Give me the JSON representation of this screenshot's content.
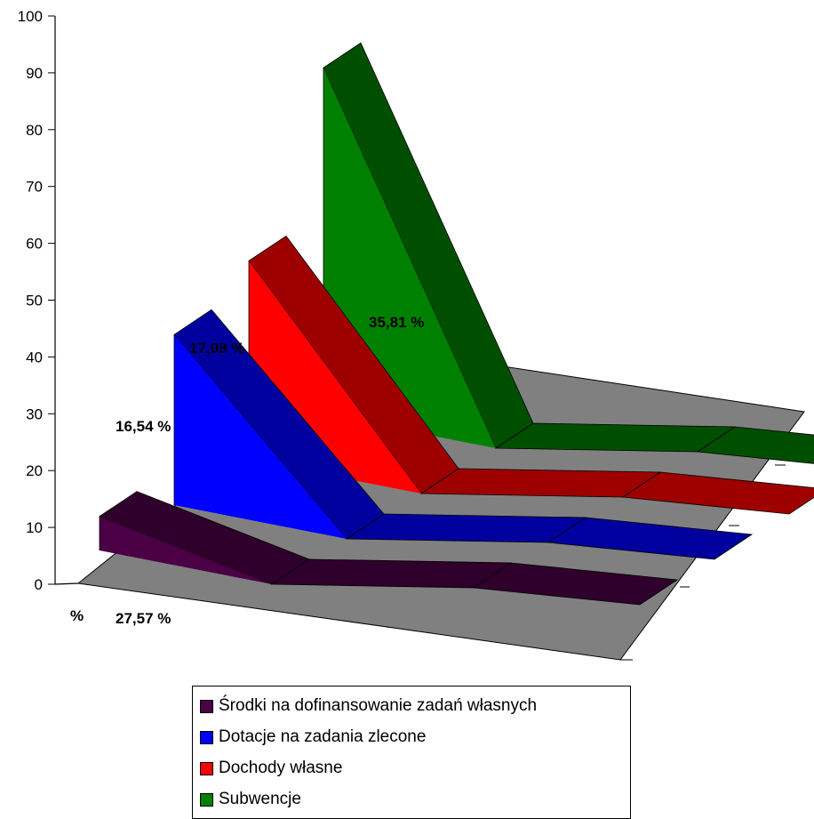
{
  "chart_data": {
    "type": "area",
    "style": "3d-perspective",
    "ylim": [
      0,
      100
    ],
    "yticks": [
      "0",
      "10",
      "20",
      "30",
      "40",
      "50",
      "60",
      "70",
      "80",
      "90",
      "100"
    ],
    "ylabel": "%",
    "series": [
      {
        "name": "Środki na dofinansowanie zadań własnych",
        "color": "#4B0046",
        "values": [
          6,
          0,
          0,
          0
        ],
        "data_label": "27,57 %"
      },
      {
        "name": "Dotacje na zadania zlecone",
        "color": "#0000FF",
        "values": [
          30,
          0,
          0,
          0
        ],
        "data_label": "16,54 %"
      },
      {
        "name": "Dochody własne",
        "color": "#FF0000",
        "values": [
          35,
          0,
          0,
          0
        ],
        "data_label": "17,08 %"
      },
      {
        "name": "Subwencje",
        "color": "#008000",
        "values": [
          61,
          0,
          0,
          0
        ],
        "data_label": "35,81 %"
      }
    ],
    "floor_color": "#808080",
    "grid": false,
    "legend_position": "bottom"
  }
}
